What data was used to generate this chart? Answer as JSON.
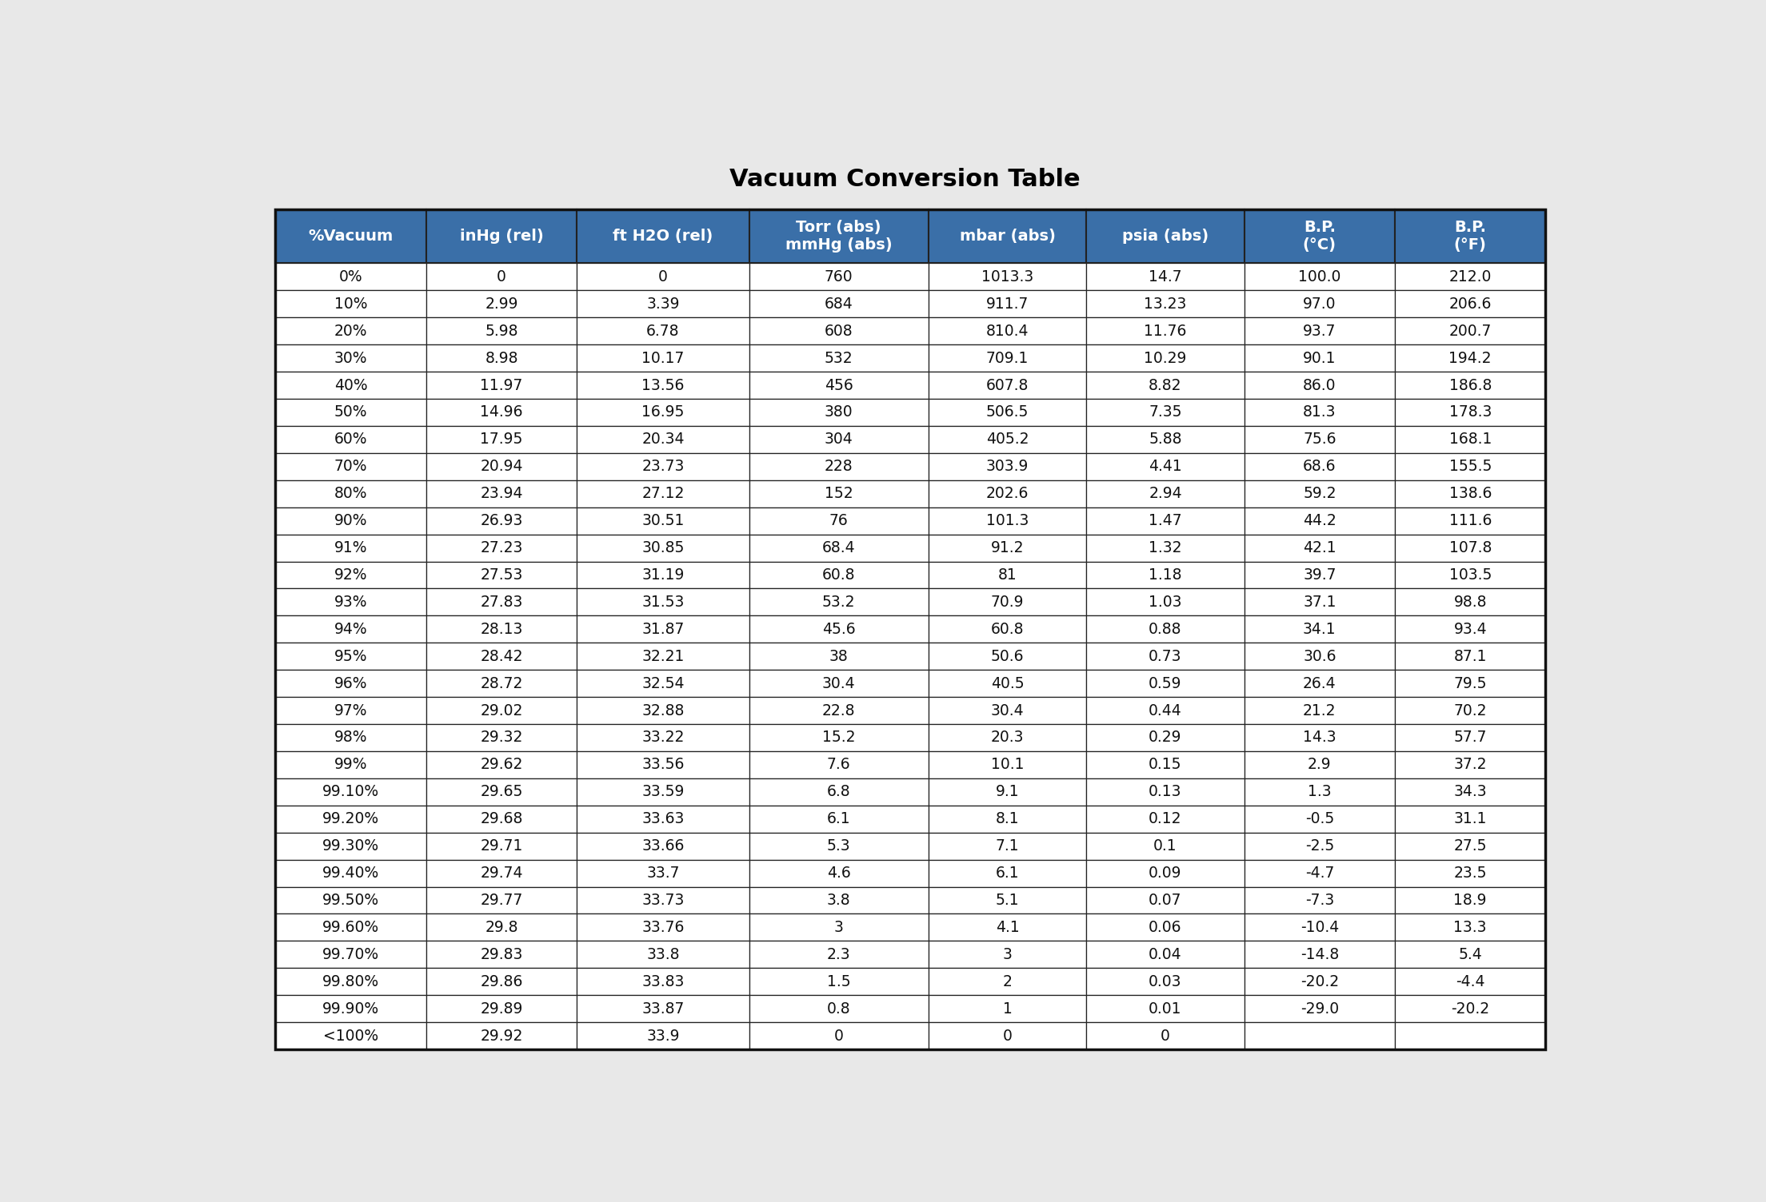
{
  "title": "Vacuum Conversion Table",
  "headers": [
    "%Vacuum",
    "inHg (rel)",
    "ft H2O (rel)",
    "Torr (abs)\nmmHg (abs)",
    "mbar (abs)",
    "psia (abs)",
    "B.P.\n(°C)",
    "B.P.\n(°F)"
  ],
  "col_widths_rel": [
    1.05,
    1.05,
    1.2,
    1.25,
    1.1,
    1.1,
    1.05,
    1.05
  ],
  "header_bg": "#3a6fa8",
  "header_fg": "#ffffff",
  "row_bg": "#ffffff",
  "border_color": "#222222",
  "page_bg": "#e8e8e8",
  "title_fontsize": 22,
  "header_fontsize": 14,
  "cell_fontsize": 13.5,
  "rows": [
    [
      "0%",
      "0",
      "0",
      "760",
      "1013.3",
      "14.7",
      "100.0",
      "212.0"
    ],
    [
      "10%",
      "2.99",
      "3.39",
      "684",
      "911.7",
      "13.23",
      "97.0",
      "206.6"
    ],
    [
      "20%",
      "5.98",
      "6.78",
      "608",
      "810.4",
      "11.76",
      "93.7",
      "200.7"
    ],
    [
      "30%",
      "8.98",
      "10.17",
      "532",
      "709.1",
      "10.29",
      "90.1",
      "194.2"
    ],
    [
      "40%",
      "11.97",
      "13.56",
      "456",
      "607.8",
      "8.82",
      "86.0",
      "186.8"
    ],
    [
      "50%",
      "14.96",
      "16.95",
      "380",
      "506.5",
      "7.35",
      "81.3",
      "178.3"
    ],
    [
      "60%",
      "17.95",
      "20.34",
      "304",
      "405.2",
      "5.88",
      "75.6",
      "168.1"
    ],
    [
      "70%",
      "20.94",
      "23.73",
      "228",
      "303.9",
      "4.41",
      "68.6",
      "155.5"
    ],
    [
      "80%",
      "23.94",
      "27.12",
      "152",
      "202.6",
      "2.94",
      "59.2",
      "138.6"
    ],
    [
      "90%",
      "26.93",
      "30.51",
      "76",
      "101.3",
      "1.47",
      "44.2",
      "111.6"
    ],
    [
      "91%",
      "27.23",
      "30.85",
      "68.4",
      "91.2",
      "1.32",
      "42.1",
      "107.8"
    ],
    [
      "92%",
      "27.53",
      "31.19",
      "60.8",
      "81",
      "1.18",
      "39.7",
      "103.5"
    ],
    [
      "93%",
      "27.83",
      "31.53",
      "53.2",
      "70.9",
      "1.03",
      "37.1",
      "98.8"
    ],
    [
      "94%",
      "28.13",
      "31.87",
      "45.6",
      "60.8",
      "0.88",
      "34.1",
      "93.4"
    ],
    [
      "95%",
      "28.42",
      "32.21",
      "38",
      "50.6",
      "0.73",
      "30.6",
      "87.1"
    ],
    [
      "96%",
      "28.72",
      "32.54",
      "30.4",
      "40.5",
      "0.59",
      "26.4",
      "79.5"
    ],
    [
      "97%",
      "29.02",
      "32.88",
      "22.8",
      "30.4",
      "0.44",
      "21.2",
      "70.2"
    ],
    [
      "98%",
      "29.32",
      "33.22",
      "15.2",
      "20.3",
      "0.29",
      "14.3",
      "57.7"
    ],
    [
      "99%",
      "29.62",
      "33.56",
      "7.6",
      "10.1",
      "0.15",
      "2.9",
      "37.2"
    ],
    [
      "99.10%",
      "29.65",
      "33.59",
      "6.8",
      "9.1",
      "0.13",
      "1.3",
      "34.3"
    ],
    [
      "99.20%",
      "29.68",
      "33.63",
      "6.1",
      "8.1",
      "0.12",
      "-0.5",
      "31.1"
    ],
    [
      "99.30%",
      "29.71",
      "33.66",
      "5.3",
      "7.1",
      "0.1",
      "-2.5",
      "27.5"
    ],
    [
      "99.40%",
      "29.74",
      "33.7",
      "4.6",
      "6.1",
      "0.09",
      "-4.7",
      "23.5"
    ],
    [
      "99.50%",
      "29.77",
      "33.73",
      "3.8",
      "5.1",
      "0.07",
      "-7.3",
      "18.9"
    ],
    [
      "99.60%",
      "29.8",
      "33.76",
      "3",
      "4.1",
      "0.06",
      "-10.4",
      "13.3"
    ],
    [
      "99.70%",
      "29.83",
      "33.8",
      "2.3",
      "3",
      "0.04",
      "-14.8",
      "5.4"
    ],
    [
      "99.80%",
      "29.86",
      "33.83",
      "1.5",
      "2",
      "0.03",
      "-20.2",
      "-4.4"
    ],
    [
      "99.90%",
      "29.89",
      "33.87",
      "0.8",
      "1",
      "0.01",
      "-29.0",
      "-20.2"
    ],
    [
      "<100%",
      "29.92",
      "33.9",
      "0",
      "0",
      "0",
      "",
      ""
    ]
  ]
}
